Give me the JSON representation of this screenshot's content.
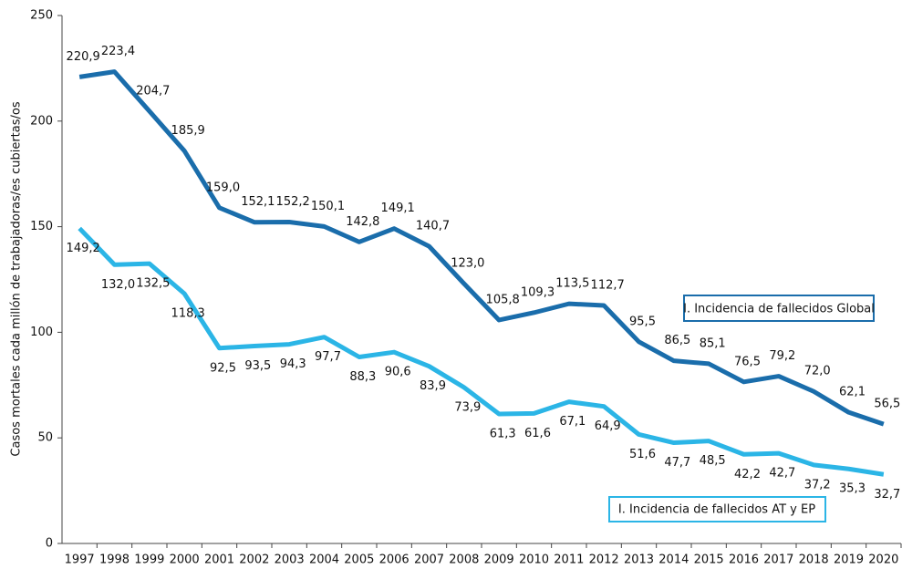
{
  "chart_data": {
    "type": "line",
    "y_label": "Casos mortales cada millón de trabajadoras/es cubiertas/os",
    "categories": [
      "1997",
      "1998",
      "1999",
      "2000",
      "2001",
      "2002",
      "2003",
      "2004",
      "2005",
      "2006",
      "2007",
      "2008",
      "2009",
      "2010",
      "2011",
      "2012",
      "2013",
      "2014",
      "2015",
      "2016",
      "2017",
      "2018",
      "2019",
      "2020"
    ],
    "series": [
      {
        "name": "I. Incidencia de fallecidos Global",
        "color": "#1a6dab",
        "values": [
          220.9,
          223.4,
          204.7,
          185.9,
          159.0,
          152.1,
          152.2,
          150.1,
          142.8,
          149.1,
          140.7,
          123.0,
          105.8,
          109.3,
          113.5,
          112.7,
          95.5,
          86.5,
          85.1,
          76.5,
          79.2,
          72.0,
          62.1,
          56.5
        ],
        "value_labels": [
          "220,9",
          "223,4",
          "204,7",
          "185,9",
          "159,0",
          "152,1",
          "152,2",
          "150,1",
          "142,8",
          "149,1",
          "140,7",
          "123,0",
          "105,8",
          "109,3",
          "113,5",
          "112,7",
          "95,5",
          "86,5",
          "85,1",
          "76,5",
          "79,2",
          "72,0",
          "62,1",
          "56,5"
        ]
      },
      {
        "name": "I. Incidencia de fallecidos AT y EP",
        "color": "#2bb5e6",
        "values": [
          149.2,
          132.0,
          132.5,
          118.3,
          92.5,
          93.5,
          94.3,
          97.7,
          88.3,
          90.6,
          83.9,
          73.9,
          61.3,
          61.6,
          67.1,
          64.9,
          51.6,
          47.7,
          48.5,
          42.2,
          42.7,
          37.2,
          35.3,
          32.7
        ],
        "value_labels": [
          "149,2",
          "132,0",
          "132,5",
          "118,3",
          "92,5",
          "93,5",
          "94,3",
          "97,7",
          "88,3",
          "90,6",
          "83,9",
          "73,9",
          "61,3",
          "61,6",
          "67,1",
          "64,9",
          "51,6",
          "47,7",
          "48,5",
          "42,2",
          "42,7",
          "37,2",
          "35,3",
          "32,7"
        ]
      }
    ],
    "ylim": [
      0,
      250
    ],
    "yticks": [
      0,
      50,
      100,
      150,
      200,
      250
    ],
    "grid": false
  }
}
